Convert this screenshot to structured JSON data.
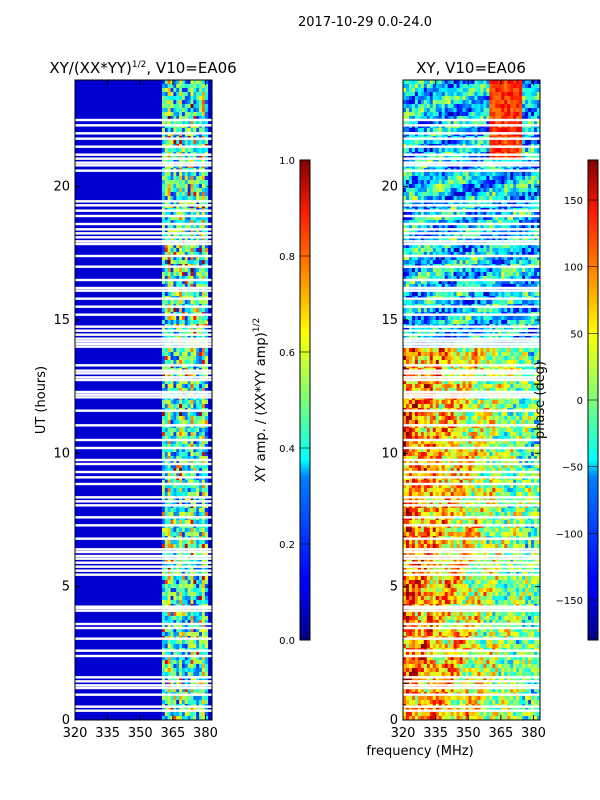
{
  "figure": {
    "suptitle": "2017-10-29 0.0-24.0",
    "xlabel": "frequency (MHz)"
  },
  "chart_data": [
    {
      "type": "heatmap",
      "title_main": "XY/(XX*YY)",
      "title_exp": "1/2",
      "title_suffix": ", V10=EA06",
      "ylabel": "UT (hours)",
      "xlabel": "frequency (MHz)",
      "xlim": [
        320,
        383
      ],
      "ylim": [
        0,
        24
      ],
      "xticks": [
        320,
        335,
        350,
        365,
        380
      ],
      "yticks": [
        0,
        5,
        10,
        15,
        20
      ],
      "signal_band_mhz": [
        360,
        381
      ],
      "colorbar": {
        "label_main": "XY amp. / (XX*YY amp)",
        "label_exp": "1/2",
        "range": [
          0.0,
          1.0
        ],
        "ticks": [
          "0.0",
          "0.2",
          "0.4",
          "0.6",
          "0.8",
          "1.0"
        ],
        "tick_values": [
          0.0,
          0.2,
          0.4,
          0.6,
          0.8,
          1.0
        ]
      }
    },
    {
      "type": "heatmap",
      "title": "XY, V10=EA06",
      "xlabel": "frequency (MHz)",
      "xlim": [
        320,
        383
      ],
      "ylim": [
        0,
        24
      ],
      "xticks": [
        320,
        335,
        350,
        365,
        380
      ],
      "yticks": [
        0,
        5,
        10,
        15,
        20
      ],
      "colorbar": {
        "label": "phase (deg)",
        "range": [
          -180,
          180
        ],
        "ticks": [
          "150",
          "100",
          "50",
          "0",
          "−50",
          "−100",
          "−150"
        ],
        "tick_values": [
          150,
          100,
          50,
          0,
          -50,
          -100,
          -150
        ]
      }
    }
  ],
  "flagged_hours": [
    0.35,
    0.5,
    0.95,
    1.2,
    1.3,
    1.45,
    1.6,
    2.4,
    2.6,
    3.05,
    3.45,
    3.6,
    4.1,
    4.2,
    4.25,
    5.45,
    5.6,
    5.75,
    5.9,
    6.05,
    6.15,
    6.3,
    6.4,
    6.8,
    7.3,
    7.6,
    8.05,
    8.2,
    8.35,
    8.85,
    9.1,
    9.3,
    9.6,
    9.75,
    10.2,
    10.5,
    11.05,
    11.6,
    12.1,
    12.2,
    12.3,
    12.75,
    12.85,
    13.0,
    13.1,
    13.3,
    14.0,
    14.1,
    14.2,
    14.3,
    14.45,
    14.6,
    14.75,
    15.2,
    15.5,
    15.8,
    16.1,
    16.2,
    16.5,
    17.0,
    17.4,
    17.85,
    17.95,
    18.1,
    18.25,
    18.4,
    18.6,
    18.9,
    19.1,
    19.3,
    19.45,
    20.6,
    20.8,
    20.9,
    21.05,
    21.2,
    21.5,
    21.8,
    22.0,
    22.3,
    22.5
  ]
}
